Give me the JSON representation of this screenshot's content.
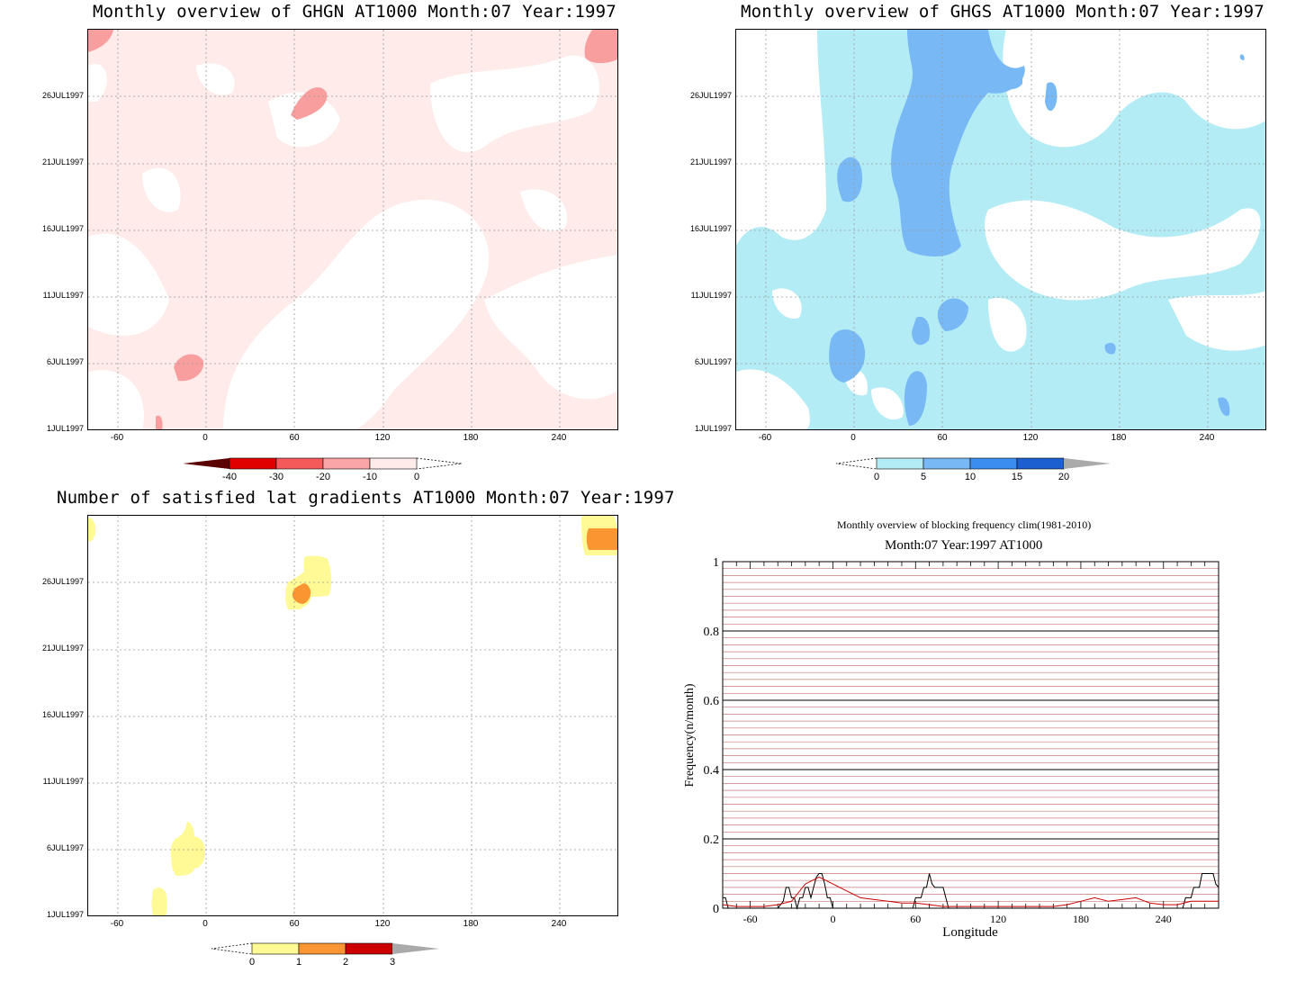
{
  "panels": {
    "ghgn": {
      "title": "Monthly overview of GHGN AT1000 Month:07 Year:1997",
      "colorbar": {
        "labels": [
          "-40",
          "-30",
          "-20",
          "-10",
          "0"
        ],
        "colors": [
          "#e00000",
          "#f55a5a",
          "#fba6a6",
          "#ffebe9"
        ],
        "arrow_color": "#5a0000"
      }
    },
    "ghgs": {
      "title": "Monthly overview of GHGS AT1000 Month:07 Year:1997",
      "colorbar": {
        "labels": [
          "0",
          "5",
          "10",
          "15",
          "20"
        ],
        "colors": [
          "#b4ecf6",
          "#78b8f5",
          "#3a8ef0",
          "#1c5fd0"
        ],
        "arrow_color": "#aaaaaa"
      }
    },
    "gradients": {
      "title": "Number of satisfied lat gradients AT1000 Month:07 Year:1997",
      "colorbar": {
        "labels": [
          "0",
          "1",
          "2",
          "3"
        ],
        "colors": [
          "#fffa96",
          "#fa9632",
          "#cc0000"
        ],
        "arrow_color": "#aaaaaa"
      }
    },
    "frequency": {
      "title": "Monthly overview of blocking frequency clim(1981-2010)",
      "subtitle": "Month:07 Year:1997  AT1000",
      "xlabel": "Longitude",
      "ylabel": "Frequency(n/month)"
    }
  },
  "axes": {
    "date_ticks": [
      "1JUL1997",
      "6JUL1997",
      "11JUL1997",
      "16JUL1997",
      "21JUL1997",
      "26JUL1997"
    ],
    "lon_ticks": [
      "-60",
      "0",
      "60",
      "120",
      "180",
      "240"
    ],
    "freq_ticks": [
      "0",
      "0.2",
      "0.4",
      "0.6",
      "0.8",
      "1"
    ]
  },
  "chart_data": [
    {
      "type": "heatmap",
      "title": "Monthly overview of GHGN AT1000 Month:07 Year:1997",
      "x_axis": "longitude",
      "xlim": [
        -80,
        280
      ],
      "y_axis": "date",
      "ylim": [
        "1JUL1997",
        "31JUL1997"
      ],
      "levels": [
        -40,
        -30,
        -20,
        -10,
        0
      ],
      "grid": true
    },
    {
      "type": "heatmap",
      "title": "Monthly overview of GHGS AT1000 Month:07 Year:1997",
      "x_axis": "longitude",
      "xlim": [
        -80,
        280
      ],
      "y_axis": "date",
      "ylim": [
        "1JUL1997",
        "31JUL1997"
      ],
      "levels": [
        0,
        5,
        10,
        15,
        20
      ],
      "grid": true
    },
    {
      "type": "heatmap",
      "title": "Number of satisfied lat gradients AT1000 Month:07 Year:1997",
      "x_axis": "longitude",
      "xlim": [
        -80,
        280
      ],
      "y_axis": "date",
      "ylim": [
        "1JUL1997",
        "31JUL1997"
      ],
      "levels": [
        0,
        1,
        2,
        3
      ],
      "grid": true
    },
    {
      "type": "line",
      "title": "Monthly overview of blocking frequency clim(1981-2010)",
      "subtitle": "Month:07 Year:1997  AT1000",
      "xlabel": "Longitude",
      "ylabel": "Frequency(n/month)",
      "xlim": [
        -80,
        280
      ],
      "ylim": [
        0,
        1
      ],
      "grid": true,
      "series": [
        {
          "color": "#000000",
          "x": [
            -80,
            -78,
            -76,
            -70,
            -60,
            -50,
            -40,
            -36,
            -34,
            -32,
            -30,
            -28,
            -26,
            -24,
            -22,
            -20,
            -18,
            -16,
            -14,
            -12,
            -10,
            -8,
            -6,
            -4,
            -2,
            0,
            10,
            20,
            40,
            50,
            58,
            60,
            62,
            64,
            66,
            68,
            70,
            72,
            74,
            76,
            78,
            80,
            84,
            90,
            100,
            120,
            140,
            160,
            180,
            200,
            220,
            240,
            250,
            254,
            256,
            258,
            260,
            262,
            264,
            266,
            268,
            270,
            272,
            274,
            276,
            278,
            280
          ],
          "values": [
            0.03,
            0.03,
            0.0,
            0.0,
            0.0,
            0.0,
            0.0,
            0.02,
            0.06,
            0.06,
            0.03,
            0.03,
            0.0,
            0.03,
            0.03,
            0.06,
            0.06,
            0.03,
            0.06,
            0.09,
            0.1,
            0.1,
            0.07,
            0.03,
            0.03,
            0.0,
            0.0,
            0.0,
            0.0,
            0.0,
            0.0,
            0.03,
            0.03,
            0.03,
            0.06,
            0.06,
            0.1,
            0.07,
            0.06,
            0.06,
            0.06,
            0.06,
            0.0,
            0.0,
            0.0,
            0.0,
            0.0,
            0.0,
            0.0,
            0.0,
            0.0,
            0.0,
            0.0,
            0.0,
            0.03,
            0.03,
            0.03,
            0.06,
            0.06,
            0.06,
            0.1,
            0.1,
            0.1,
            0.1,
            0.1,
            0.07,
            0.06
          ]
        },
        {
          "color": "#cc0000",
          "x": [
            -80,
            -70,
            -60,
            -50,
            -40,
            -30,
            -20,
            -10,
            0,
            10,
            20,
            30,
            40,
            50,
            60,
            70,
            80,
            90,
            100,
            110,
            120,
            130,
            140,
            150,
            160,
            170,
            180,
            190,
            200,
            210,
            220,
            230,
            240,
            250,
            260,
            270,
            280
          ],
          "values": [
            0.01,
            0.005,
            0.005,
            0.005,
            0.01,
            0.02,
            0.07,
            0.09,
            0.07,
            0.05,
            0.03,
            0.025,
            0.02,
            0.015,
            0.015,
            0.01,
            0.005,
            0.005,
            0.005,
            0.005,
            0.005,
            0.005,
            0.005,
            0.005,
            0.005,
            0.01,
            0.02,
            0.03,
            0.02,
            0.025,
            0.03,
            0.015,
            0.01,
            0.01,
            0.02,
            0.02,
            0.02
          ]
        }
      ]
    }
  ]
}
